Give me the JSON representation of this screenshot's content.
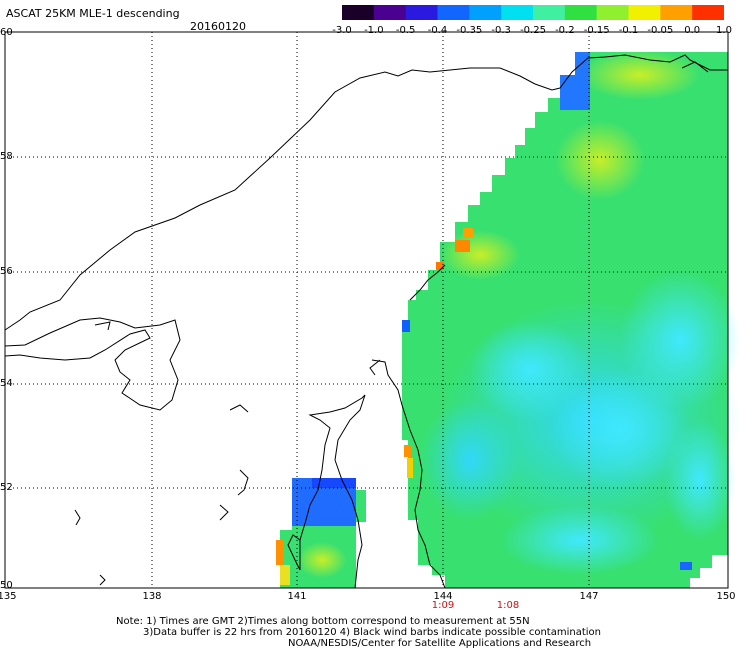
{
  "header": {
    "title": "ASCAT 25KM MLE-1 descending",
    "date": "20160120"
  },
  "colorbar": {
    "labels": [
      "-3.0",
      "-1.0",
      "-0.5",
      "-0.4",
      "-0.35",
      "-0.3",
      "-0.25",
      "-0.2",
      "-0.15",
      "-0.1",
      "-0.05",
      "0.0",
      "1.0"
    ],
    "colors": [
      "#1a0028",
      "#4a0090",
      "#2a1ae0",
      "#1066ff",
      "#00a0ff",
      "#00e0f0",
      "#40f0a0",
      "#30e040",
      "#90f030",
      "#f0f000",
      "#ffa000",
      "#ff3000"
    ]
  },
  "map": {
    "lat_labels": [
      "60",
      "58",
      "56",
      "54",
      "52",
      "50"
    ],
    "lon_labels": [
      "135",
      "138",
      "141",
      "144",
      "147",
      "150"
    ],
    "time_labels": [
      "1:09",
      "1:08"
    ]
  },
  "notes": {
    "line1": "Note: 1) Times are GMT 2)Times along bottom correspond to measurement at 55N",
    "line2": "3)Data buffer is 22 hrs from 20160120 4) Black wind barbs indicate possible contamination",
    "line3": "NOAA/NESDIS/Center for Satellite Applications and Research"
  }
}
